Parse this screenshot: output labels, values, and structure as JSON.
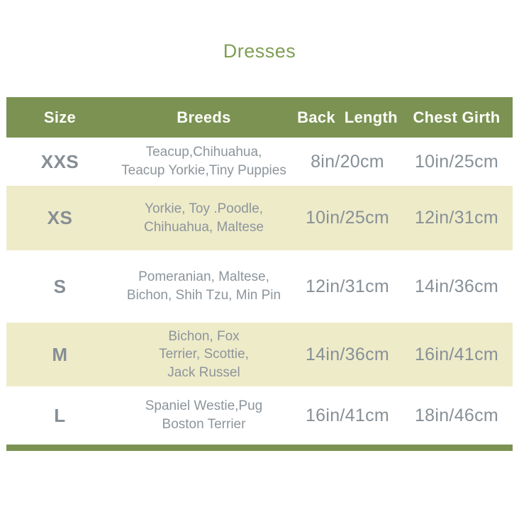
{
  "title": "Dresses",
  "colors": {
    "header_bg": "#7b9253",
    "alt_row_bg": "#eeebc9",
    "title_green": "#7f9e53",
    "body_text_gray": "#879096",
    "header_text": "#fdfdf8"
  },
  "chart_data": {
    "type": "table",
    "title": "Dresses",
    "columns": [
      "Size",
      "Breeds",
      "Back  Length",
      "Chest Girth"
    ],
    "rows": [
      [
        "XXS",
        "Teacup,Chihuahua,\nTeacup Yorkie,Tiny Puppies",
        "8in/20cm",
        "10in/25cm"
      ],
      [
        "XS",
        "Yorkie, Toy .Poodle,\nChihuahua, Maltese",
        "10in/25cm",
        "12in/31cm"
      ],
      [
        "S",
        "Pomeranian, Maltese,\nBichon, Shih Tzu, Min Pin",
        "12in/31cm",
        "14in/36cm"
      ],
      [
        "M",
        "Bichon, Fox\nTerrier, Scottie,\nJack Russel",
        "14in/36cm",
        "16in/41cm"
      ],
      [
        "L",
        "Spaniel Westie,Pug\nBoston Terrier",
        "16in/41cm",
        "18in/46cm"
      ]
    ]
  }
}
